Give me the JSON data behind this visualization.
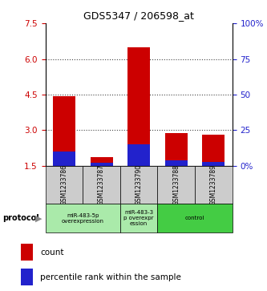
{
  "title": "GDS5347 / 206598_at",
  "samples": [
    "GSM1233786",
    "GSM1233787",
    "GSM1233790",
    "GSM1233788",
    "GSM1233789"
  ],
  "red_tops": [
    4.42,
    1.88,
    6.48,
    2.88,
    2.82
  ],
  "blue_tops": [
    2.12,
    1.62,
    2.42,
    1.72,
    1.68
  ],
  "bar_base": 1.5,
  "ylim": [
    1.5,
    7.5
  ],
  "y_left_ticks": [
    1.5,
    3.0,
    4.5,
    6.0,
    7.5
  ],
  "y_right_ticks": [
    0,
    25,
    50,
    75,
    100
  ],
  "y_right_labels": [
    "0%",
    "25",
    "50",
    "75",
    "100%"
  ],
  "dotted_lines": [
    3.0,
    4.5,
    6.0
  ],
  "proto_groups": [
    {
      "xmin": 0,
      "xmax": 2,
      "label": "miR-483-5p\noverexpression",
      "color": "#aaeaaa"
    },
    {
      "xmin": 2,
      "xmax": 3,
      "label": "miR-483-3\np overexpr\nession",
      "color": "#aaeaaa"
    },
    {
      "xmin": 3,
      "xmax": 5,
      "label": "control",
      "color": "#44cc44"
    }
  ],
  "bar_width": 0.6,
  "red_color": "#cc0000",
  "blue_color": "#2222cc",
  "sample_box_color": "#cccccc",
  "protocol_label": "protocol",
  "legend_count": "count",
  "legend_percentile": "percentile rank within the sample",
  "left_axis_color": "#cc0000",
  "right_axis_color": "#2222cc",
  "background_color": "#ffffff",
  "plot_bg_color": "#ffffff",
  "grid_color": "#444444",
  "title_fontsize": 9
}
